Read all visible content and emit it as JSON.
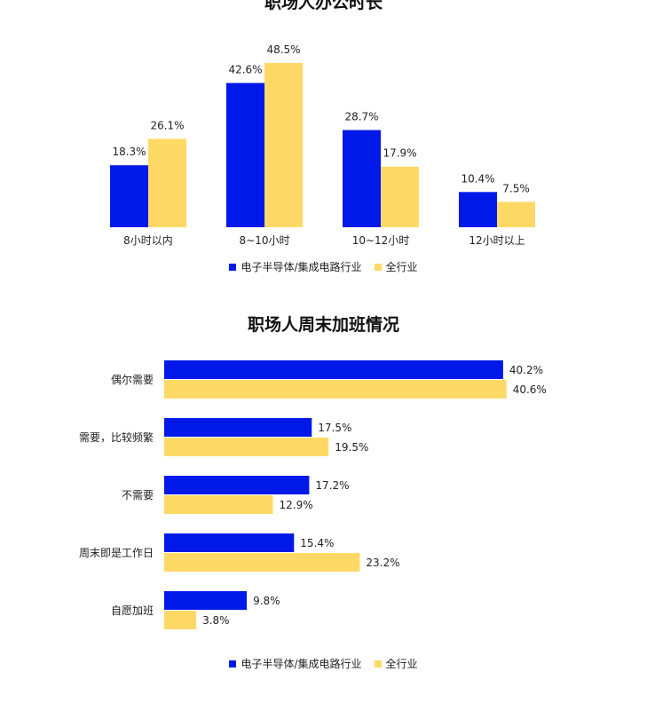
{
  "colors": {
    "electronics": "#0019e8",
    "all": "#ffd966",
    "text": "#222222"
  },
  "chart_data": [
    {
      "type": "bar",
      "title": "职场人办公时长",
      "categories": [
        "8小时以内",
        "8~10小时",
        "10~12小时",
        "12小时以上"
      ],
      "series": [
        {
          "name": "电子半导体/集成电路行业",
          "values": [
            18.3,
            42.6,
            28.7,
            10.4
          ]
        },
        {
          "name": "全行业",
          "values": [
            26.1,
            48.5,
            17.9,
            7.5
          ]
        }
      ],
      "unit": "%",
      "ylim": [
        0,
        50
      ],
      "grid": false,
      "legend": "bottom"
    },
    {
      "type": "bar",
      "orientation": "horizontal",
      "title": "职场人周末加班情况",
      "categories": [
        "偶尔需要",
        "需要，比较频繁",
        "不需要",
        "周末即是工作日",
        "自愿加班"
      ],
      "series": [
        {
          "name": "电子半导体/集成电路行业",
          "values": [
            40.2,
            17.5,
            17.2,
            15.4,
            9.8
          ]
        },
        {
          "name": "全行业",
          "values": [
            40.6,
            19.5,
            12.9,
            23.2,
            3.8
          ]
        }
      ],
      "unit": "%",
      "xlim": [
        0,
        45
      ],
      "grid": false,
      "legend": "bottom"
    }
  ]
}
